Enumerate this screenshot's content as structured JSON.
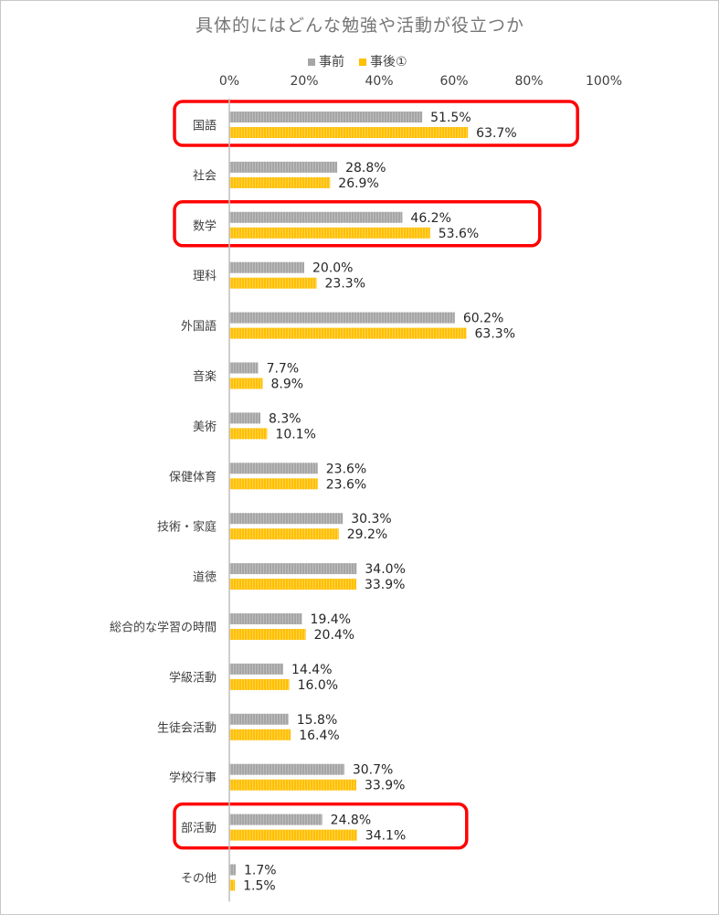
{
  "chart_data": {
    "type": "bar",
    "orientation": "horizontal",
    "title": "具体的にはどんな勉強や活動が役立つか",
    "categories": [
      "国語",
      "社会",
      "数学",
      "理科",
      "外国語",
      "音楽",
      "美術",
      "保健体育",
      "技術・家庭",
      "道徳",
      "総合的な学習の時間",
      "学級活動",
      "生徒会活動",
      "学校行事",
      "部活動",
      "その他"
    ],
    "series": [
      {
        "name": "事前",
        "color": "#a6a6a6",
        "values": [
          51.5,
          28.8,
          46.2,
          20.0,
          60.2,
          7.7,
          8.3,
          23.6,
          30.3,
          34.0,
          19.4,
          14.4,
          15.8,
          30.7,
          24.8,
          1.7
        ],
        "labels": [
          "51.5%",
          "28.8%",
          "46.2%",
          "20.0%",
          "60.2%",
          "7.7%",
          "8.3%",
          "23.6%",
          "30.3%",
          "34.0%",
          "19.4%",
          "14.4%",
          "15.8%",
          "30.7%",
          "24.8%",
          "1.7%"
        ]
      },
      {
        "name": "事後①",
        "color": "#ffc000",
        "values": [
          63.7,
          26.9,
          53.6,
          23.3,
          63.3,
          8.9,
          10.1,
          23.6,
          29.2,
          33.9,
          20.4,
          16.0,
          16.4,
          33.9,
          34.1,
          1.5
        ],
        "labels": [
          "63.7%",
          "26.9%",
          "53.6%",
          "23.3%",
          "63.3%",
          "8.9%",
          "10.1%",
          "23.6%",
          "29.2%",
          "33.9%",
          "20.4%",
          "16.0%",
          "16.4%",
          "33.9%",
          "34.1%",
          "1.5%"
        ]
      }
    ],
    "xlim": [
      0,
      100
    ],
    "x_ticks": [
      "0%",
      "20%",
      "40%",
      "60%",
      "80%",
      "100%"
    ],
    "grid": false,
    "legend": "top",
    "highlighted_categories": [
      "国語",
      "数学",
      "部活動"
    ],
    "highlight_color": "#ff0000"
  }
}
